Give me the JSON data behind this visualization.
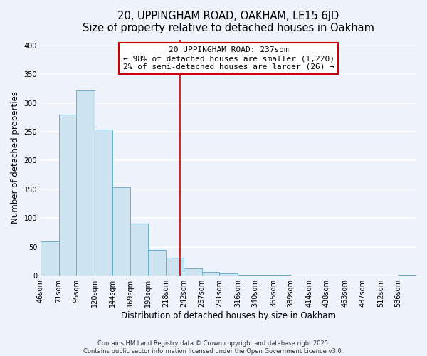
{
  "title": "20, UPPINGHAM ROAD, OAKHAM, LE15 6JD",
  "subtitle": "Size of property relative to detached houses in Oakham",
  "xlabel": "Distribution of detached houses by size in Oakham",
  "ylabel": "Number of detached properties",
  "bar_values": [
    60,
    280,
    322,
    254,
    153,
    91,
    45,
    31,
    13,
    7,
    4,
    2,
    1,
    1,
    0,
    0,
    0,
    0,
    0,
    0,
    1
  ],
  "bin_edges": [
    46,
    71,
    95,
    120,
    144,
    169,
    193,
    218,
    242,
    267,
    291,
    316,
    340,
    365,
    389,
    414,
    438,
    463,
    487,
    512,
    536,
    561
  ],
  "tick_labels": [
    "46sqm",
    "71sqm",
    "95sqm",
    "120sqm",
    "144sqm",
    "169sqm",
    "193sqm",
    "218sqm",
    "242sqm",
    "267sqm",
    "291sqm",
    "316sqm",
    "340sqm",
    "365sqm",
    "389sqm",
    "414sqm",
    "438sqm",
    "463sqm",
    "487sqm",
    "512sqm",
    "536sqm"
  ],
  "bar_color": "#cde4f0",
  "bar_edge_color": "#6aaecb",
  "vline_x": 237,
  "vline_color": "#cc0000",
  "annotation_line1": "20 UPPINGHAM ROAD: 237sqm",
  "annotation_line2": "← 98% of detached houses are smaller (1,220)",
  "annotation_line3": "2% of semi-detached houses are larger (26) →",
  "ylim": [
    0,
    410
  ],
  "yticks": [
    0,
    50,
    100,
    150,
    200,
    250,
    300,
    350,
    400
  ],
  "background_color": "#eef2fb",
  "grid_color": "#ffffff",
  "footer_line1": "Contains HM Land Registry data © Crown copyright and database right 2025.",
  "footer_line2": "Contains public sector information licensed under the Open Government Licence v3.0.",
  "title_fontsize": 10.5,
  "subtitle_fontsize": 9.5,
  "axis_label_fontsize": 8.5,
  "tick_fontsize": 7,
  "annotation_fontsize": 8,
  "footer_fontsize": 6
}
